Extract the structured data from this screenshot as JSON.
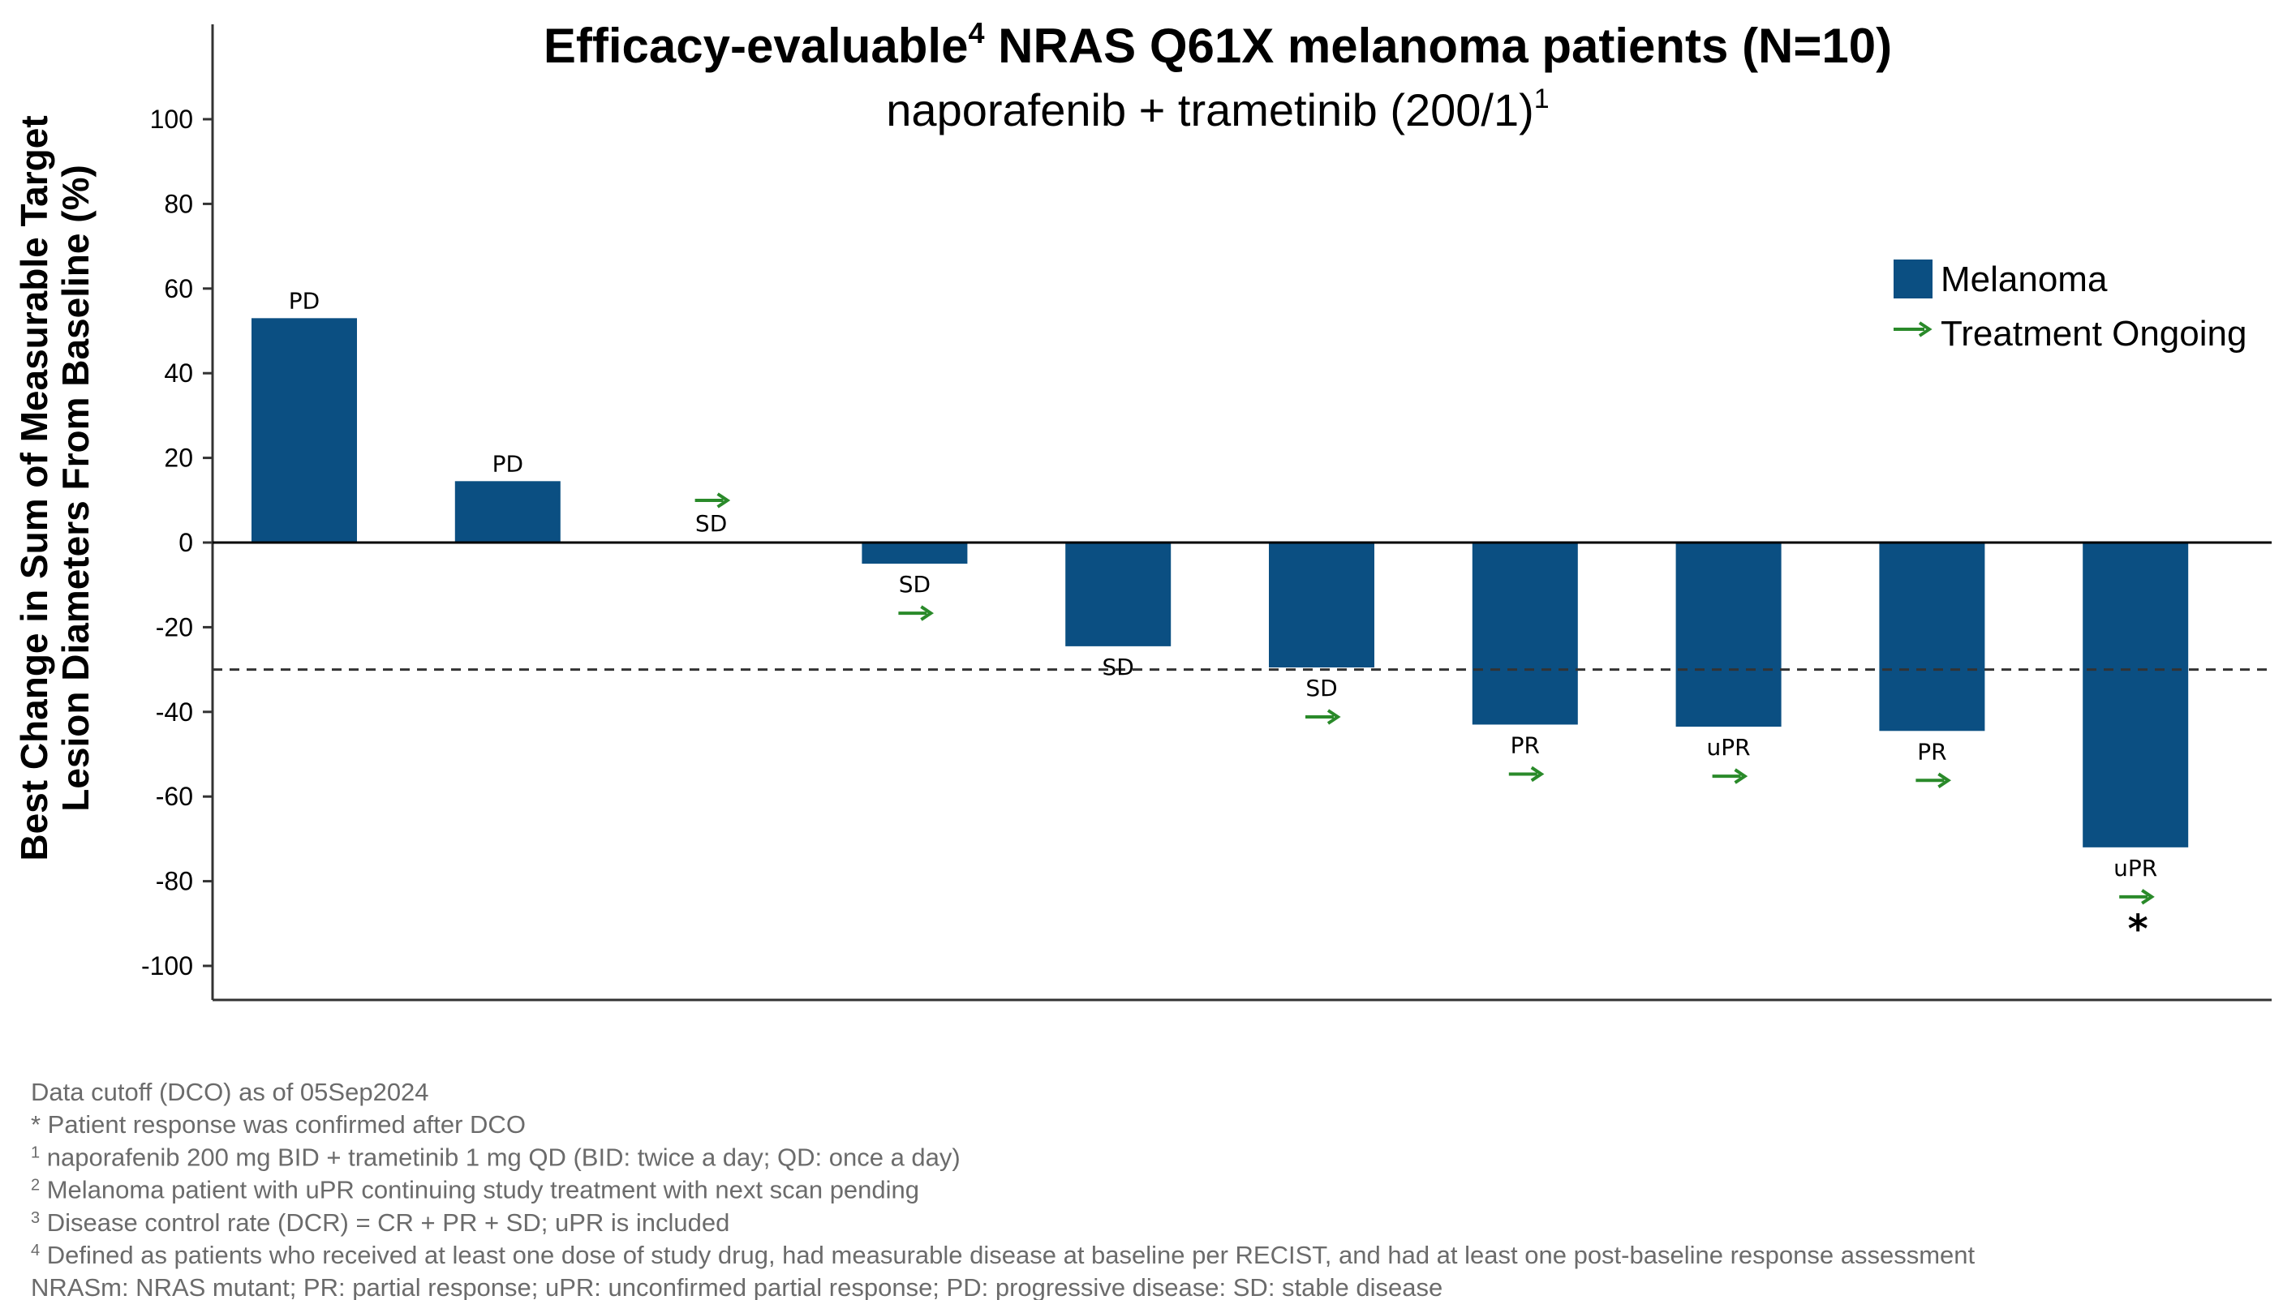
{
  "chart_data": {
    "type": "bar",
    "title": "Efficacy-evaluable",
    "title_sup": "4",
    "title_rest": " NRAS Q61X melanoma patients (N=10)",
    "subtitle": "naporafenib + trametinib (200/1)",
    "subtitle_sup": "1",
    "ylabel_line1": "Best Change in Sum of Measurable Target",
    "ylabel_line2": "Lesion Diameters From Baseline (%)",
    "xlabel": "",
    "ylim": [
      -108,
      122
    ],
    "yticks": [
      100,
      80,
      60,
      40,
      20,
      0,
      -20,
      -40,
      -60,
      -80,
      -100
    ],
    "ytick_labels": [
      "100",
      "80",
      "60",
      "40",
      "20",
      "0",
      "-20",
      "-40",
      "-60",
      "-80",
      "-100"
    ],
    "threshold": -30,
    "bar_color": "#0b4f82",
    "arrow_color": "#2a8a2a",
    "series": [
      {
        "name": "Melanoma",
        "values": [
          53,
          14.5,
          0,
          -5,
          -24.5,
          -29.5,
          -43,
          -43.5,
          -44.5,
          -72
        ]
      }
    ],
    "response_labels": [
      "PD",
      "PD",
      "SD",
      "SD",
      "SD",
      "SD",
      "PR",
      "uPR",
      "PR",
      "uPR"
    ],
    "treatment_ongoing": [
      false,
      false,
      true,
      true,
      false,
      true,
      true,
      true,
      true,
      true
    ],
    "confirmed_after_dco": [
      false,
      false,
      false,
      false,
      false,
      false,
      false,
      false,
      false,
      true
    ],
    "star_symbol": "*",
    "legend": [
      {
        "label": "Melanoma",
        "kind": "box"
      },
      {
        "label": "Treatment Ongoing",
        "kind": "arrow"
      }
    ],
    "legend_position": "top-right"
  },
  "footnotes": [
    {
      "sup": "",
      "text": "Data cutoff (DCO) as of 05Sep2024"
    },
    {
      "sup": "",
      "text": "* Patient response was confirmed after DCO"
    },
    {
      "sup": "1",
      "text": " naporafenib 200 mg BID + trametinib 1 mg QD (BID: twice a day; QD: once a day)"
    },
    {
      "sup": "2",
      "text": " Melanoma patient with uPR continuing study treatment with next scan pending"
    },
    {
      "sup": "3",
      "text": " Disease control rate (DCR) = CR + PR + SD; uPR is included"
    },
    {
      "sup": "4",
      "text": " Defined as patients who received at least one dose of study drug, had measurable disease at baseline per RECIST, and had at least one post-baseline response assessment"
    },
    {
      "sup": "",
      "text": "NRASm: NRAS mutant; PR: partial response; uPR: unconfirmed partial response; PD: progressive disease: SD: stable disease"
    }
  ]
}
